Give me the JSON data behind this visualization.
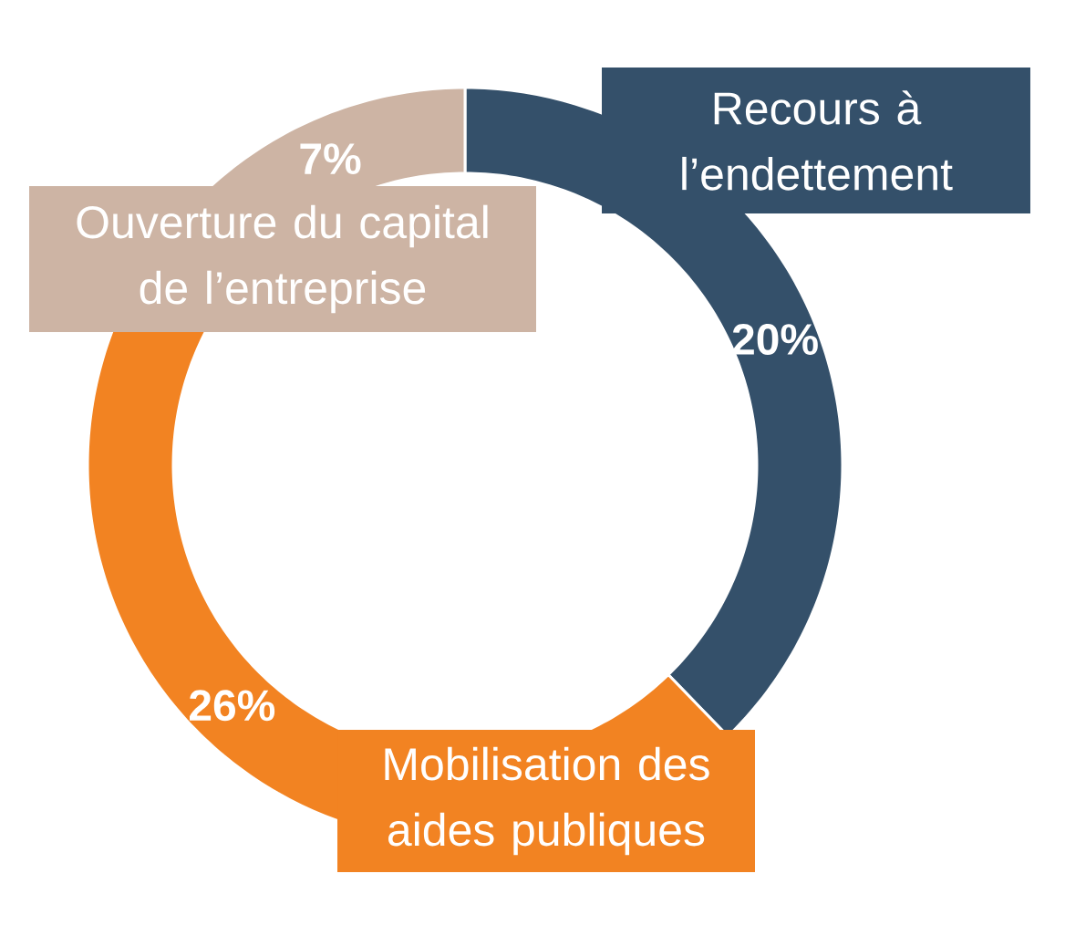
{
  "chart_data": {
    "type": "donut",
    "categories": [
      "Recours à l’endettement",
      "Mobilisation des aides publiques",
      "Ouverture du capital de l’entreprise"
    ],
    "values": [
      20,
      26,
      7
    ],
    "colors": [
      "#34506a",
      "#f28322",
      "#cdb4a4"
    ],
    "value_labels": [
      "20%",
      "26%",
      "7%"
    ]
  }
}
